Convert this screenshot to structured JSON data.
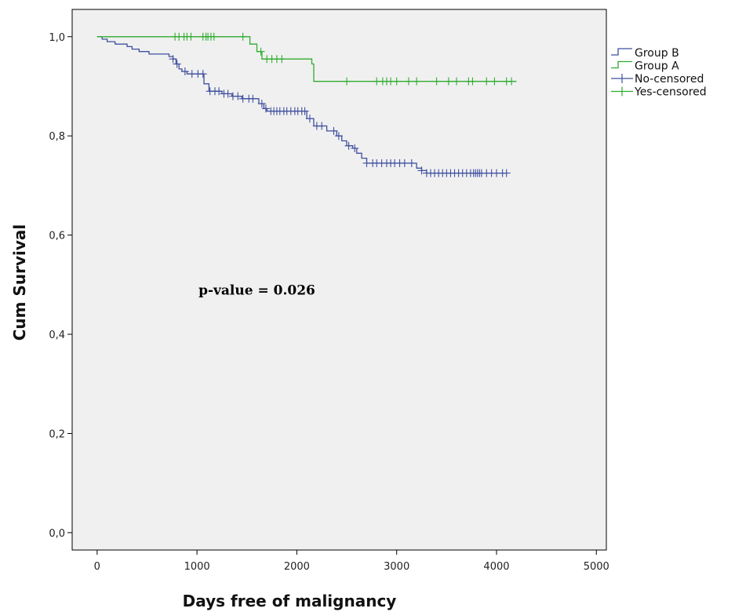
{
  "chart_data": {
    "type": "line",
    "step": true,
    "xlabel": "Days free of malignancy",
    "ylabel": "Cum Survival",
    "xlim": [
      -250,
      5100
    ],
    "ylim": [
      -0.035,
      1.055
    ],
    "xticks": [
      0,
      1000,
      2000,
      3000,
      4000,
      5000
    ],
    "yticks": [
      0.0,
      0.2,
      0.4,
      0.6,
      0.8,
      1.0
    ],
    "xtick_labels": [
      "0",
      "1000",
      "2000",
      "3000",
      "4000",
      "5000"
    ],
    "ytick_labels": [
      "0,0",
      "0,2",
      "0,4",
      "0,6",
      "0,8",
      "1,0"
    ],
    "grid": false,
    "legend_position": "right",
    "legend": [
      {
        "label": "Group B",
        "kind": "line",
        "color": "#3f4f9f"
      },
      {
        "label": "Group A",
        "kind": "line",
        "color": "#2eac2e"
      },
      {
        "label": "No-censored",
        "kind": "cross",
        "color": "#3f4f9f"
      },
      {
        "label": "Yes-censored",
        "kind": "cross",
        "color": "#2eac2e"
      }
    ],
    "annotation": {
      "text": "p-value = 0.026",
      "x": 1600,
      "y": 0.48
    },
    "series": [
      {
        "name": "Group B",
        "color": "#3f4f9f",
        "x": [
          0,
          50,
          100,
          180,
          300,
          350,
          420,
          520,
          720,
          760,
          790,
          820,
          850,
          900,
          1070,
          1120,
          1250,
          1350,
          1450,
          1620,
          1670,
          1700,
          2100,
          2170,
          2300,
          2400,
          2450,
          2500,
          2560,
          2600,
          2650,
          2700,
          2800,
          3200,
          3250,
          3300,
          3400,
          4100
        ],
        "y": [
          1.0,
          0.995,
          0.99,
          0.985,
          0.98,
          0.975,
          0.97,
          0.965,
          0.96,
          0.955,
          0.945,
          0.935,
          0.93,
          0.925,
          0.905,
          0.89,
          0.885,
          0.88,
          0.875,
          0.865,
          0.855,
          0.85,
          0.835,
          0.82,
          0.81,
          0.8,
          0.79,
          0.78,
          0.775,
          0.765,
          0.755,
          0.745,
          0.745,
          0.735,
          0.73,
          0.725,
          0.725,
          0.725
        ],
        "censored_x": [
          760,
          800,
          880,
          950,
          1010,
          1060,
          1130,
          1180,
          1220,
          1270,
          1310,
          1360,
          1410,
          1460,
          1520,
          1560,
          1650,
          1690,
          1740,
          1770,
          1800,
          1830,
          1870,
          1900,
          1940,
          1980,
          2010,
          2050,
          2080,
          2130,
          2200,
          2250,
          2370,
          2420,
          2520,
          2580,
          2700,
          2760,
          2800,
          2850,
          2900,
          2940,
          2980,
          3030,
          3080,
          3150,
          3250,
          3300,
          3340,
          3380,
          3420,
          3460,
          3500,
          3540,
          3580,
          3620,
          3660,
          3700,
          3740,
          3770,
          3790,
          3810,
          3830,
          3850,
          3900,
          3950,
          4000,
          4060,
          4100
        ]
      },
      {
        "name": "Group A",
        "color": "#2eac2e",
        "x": [
          0,
          1530,
          1600,
          1650,
          2150,
          2170,
          4200
        ],
        "y": [
          1.0,
          0.985,
          0.97,
          0.955,
          0.945,
          0.91,
          0.91
        ],
        "censored_x": [
          780,
          820,
          870,
          900,
          940,
          1060,
          1090,
          1110,
          1140,
          1170,
          1460,
          1640,
          1700,
          1750,
          1800,
          1850,
          2500,
          2800,
          2860,
          2900,
          2940,
          3000,
          3120,
          3200,
          3400,
          3520,
          3600,
          3720,
          3760,
          3900,
          3980,
          4100,
          4150
        ]
      }
    ]
  }
}
